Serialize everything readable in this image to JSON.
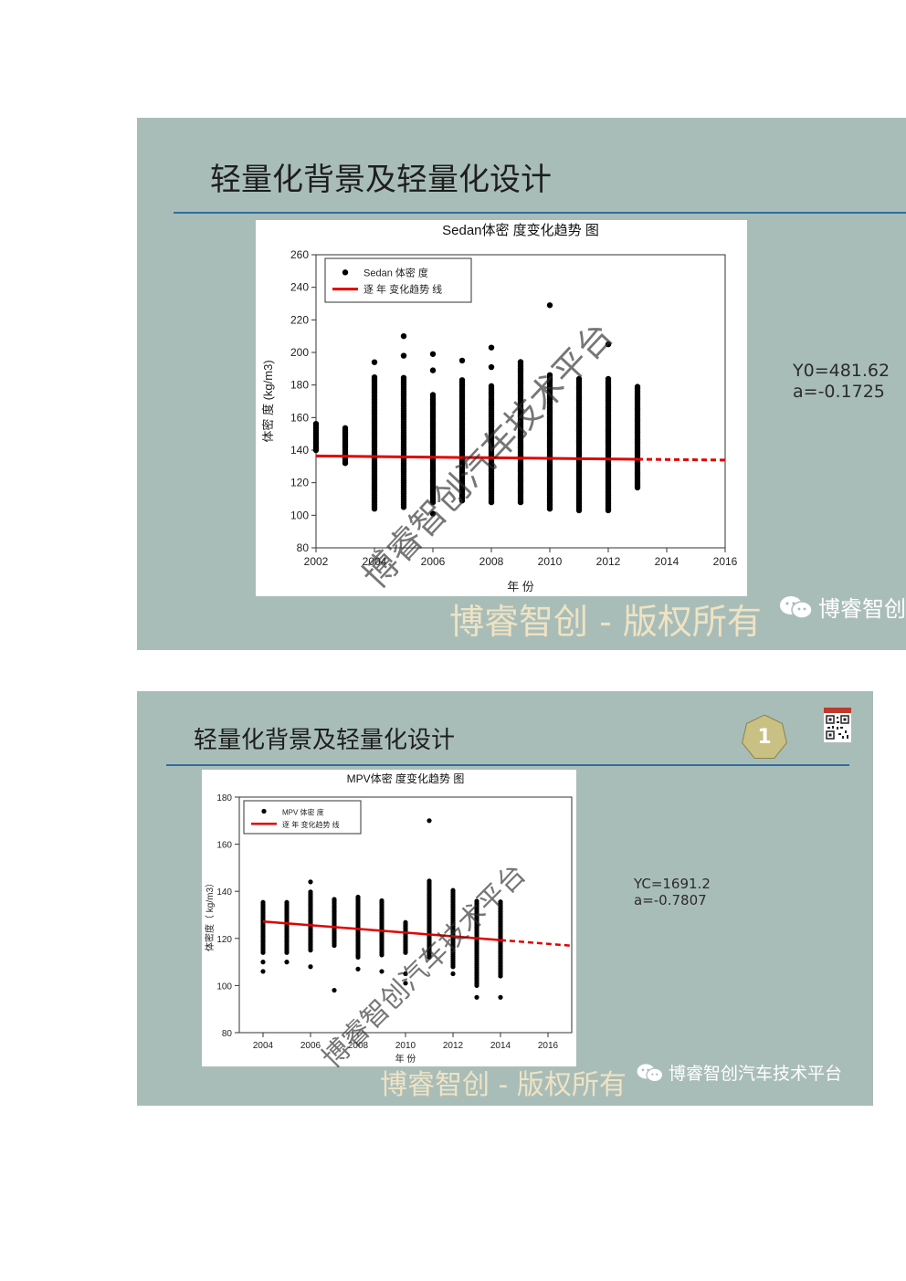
{
  "slides": [
    {
      "title": "轻量化背景及轻量化设计",
      "fit": {
        "y0": "Y0=481.62",
        "a": "a=-0.1725"
      },
      "watermark_copyright": "博睿智创 - 版权所有",
      "wechat_label": "博睿智创"
    },
    {
      "title": "轻量化背景及轻量化设计",
      "badge_number": "1",
      "fit": {
        "y0": "YC=1691.2",
        "a": "a=-0.7807"
      },
      "watermark_copyright": "博睿智创 - 版权所有",
      "wechat_label": "博睿智创汽车技术平台"
    }
  ],
  "diagonal_watermark": "博睿智创汽车技术平台",
  "colors": {
    "slide_bg": "#a9bdb8",
    "rule": "#2f6f9f",
    "trend": "#e10000",
    "points": "#000000",
    "badge": "#c9c083"
  },
  "chart_data": [
    {
      "type": "scatter",
      "title": "Sedan体密 度变化趋势 图",
      "xlabel": "年 份",
      "ylabel": "体密 度 (kg/m3)",
      "xlim": [
        2002,
        2016
      ],
      "ylim": [
        80,
        260
      ],
      "xticks": [
        2002,
        2004,
        2006,
        2008,
        2010,
        2012,
        2014,
        2016
      ],
      "yticks": [
        80,
        100,
        120,
        140,
        160,
        180,
        200,
        220,
        240,
        260
      ],
      "legend": {
        "position": "top-left",
        "entries": [
          "Sedan 体密 度",
          "逐 年 变化趋势 线"
        ]
      },
      "series": [
        {
          "name": "Sedan 体密 度",
          "kind": "points",
          "columns": [
            {
              "x": 2002,
              "min": 140,
              "max": 157,
              "extra": []
            },
            {
              "x": 2003,
              "min": 132,
              "max": 154,
              "extra": []
            },
            {
              "x": 2004,
              "min": 104,
              "max": 186,
              "extra": [
                194
              ]
            },
            {
              "x": 2005,
              "min": 105,
              "max": 185,
              "extra": [
                198,
                210
              ]
            },
            {
              "x": 2006,
              "min": 108,
              "max": 175,
              "extra": [
                101,
                189,
                199
              ]
            },
            {
              "x": 2007,
              "min": 109,
              "max": 183,
              "extra": [
                195
              ]
            },
            {
              "x": 2008,
              "min": 108,
              "max": 180,
              "extra": [
                191,
                203
              ]
            },
            {
              "x": 2009,
              "min": 108,
              "max": 195,
              "extra": []
            },
            {
              "x": 2010,
              "min": 104,
              "max": 187,
              "extra": [
                229
              ]
            },
            {
              "x": 2011,
              "min": 103,
              "max": 184,
              "extra": []
            },
            {
              "x": 2012,
              "min": 103,
              "max": 185,
              "extra": [
                205
              ]
            },
            {
              "x": 2013,
              "min": 117,
              "max": 180,
              "extra": []
            }
          ]
        },
        {
          "name": "逐 年 变化趋势 线",
          "kind": "line",
          "points": [
            [
              2002,
              136.4
            ],
            [
              2013,
              134.4
            ]
          ],
          "extrapolated": [
            [
              2013,
              134.4
            ],
            [
              2016,
              133.9
            ]
          ]
        }
      ]
    },
    {
      "type": "scatter",
      "title": "MPV体密 度变化趋势 图",
      "xlabel": "年 份",
      "ylabel": "体密度（ kg/m3）",
      "xlim": [
        2003,
        2017
      ],
      "ylim": [
        80,
        180
      ],
      "xticks": [
        2004,
        2006,
        2008,
        2010,
        2012,
        2014,
        2016
      ],
      "yticks": [
        80,
        100,
        120,
        140,
        160,
        180
      ],
      "legend": {
        "position": "top-left",
        "entries": [
          "MPV 体密 度",
          "逐 年 变化趋势 线"
        ]
      },
      "series": [
        {
          "name": "MPV 体密 度",
          "kind": "points",
          "columns": [
            {
              "x": 2004,
              "min": 114,
              "max": 136,
              "extra": [
                110,
                106
              ]
            },
            {
              "x": 2005,
              "min": 114,
              "max": 136,
              "extra": [
                110
              ]
            },
            {
              "x": 2006,
              "min": 115,
              "max": 140,
              "extra": [
                144,
                108
              ]
            },
            {
              "x": 2007,
              "min": 117,
              "max": 137,
              "extra": [
                98
              ]
            },
            {
              "x": 2008,
              "min": 112,
              "max": 138,
              "extra": [
                107
              ]
            },
            {
              "x": 2009,
              "min": 113,
              "max": 136,
              "extra": [
                106
              ]
            },
            {
              "x": 2010,
              "min": 114,
              "max": 127,
              "extra": [
                105,
                101
              ]
            },
            {
              "x": 2011,
              "min": 112,
              "max": 145,
              "extra": [
                170
              ]
            },
            {
              "x": 2012,
              "min": 108,
              "max": 141,
              "extra": [
                105
              ]
            },
            {
              "x": 2013,
              "min": 100,
              "max": 136,
              "extra": [
                95
              ]
            },
            {
              "x": 2014,
              "min": 104,
              "max": 136,
              "extra": [
                95
              ]
            }
          ]
        },
        {
          "name": "逐 年 变化趋势 线",
          "kind": "line",
          "points": [
            [
              2004,
              127.2
            ],
            [
              2014,
              119.3
            ]
          ],
          "extrapolated": [
            [
              2014,
              119.3
            ],
            [
              2017,
              116.9
            ]
          ]
        }
      ]
    }
  ]
}
